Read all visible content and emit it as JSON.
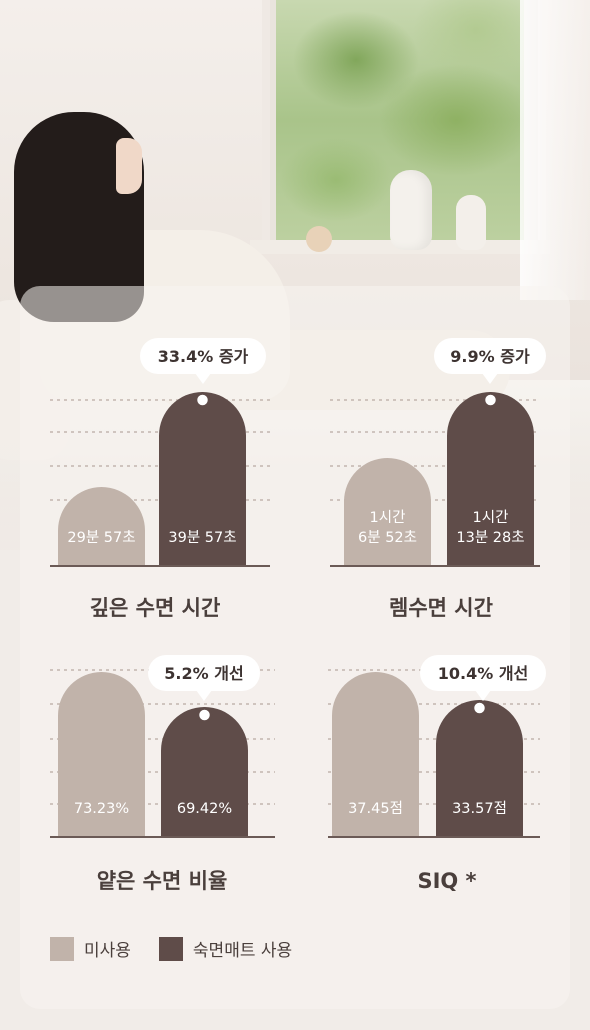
{
  "colors": {
    "before": "#c1b3aa",
    "after": "#5f4c49",
    "grid": "#b9aaa3",
    "axis": "#6b5a56",
    "bubble_bg": "#ffffff"
  },
  "legend": [
    {
      "label": "미사용",
      "color": "#c1b3aa"
    },
    {
      "label": "숙면매트 사용",
      "color": "#5f4c49"
    }
  ],
  "chart_data": [
    {
      "type": "bar",
      "title": "깊은 수면 시간",
      "categories": [
        "미사용",
        "숙면매트 사용"
      ],
      "values_minutes": [
        29.95,
        39.95
      ],
      "value_labels": [
        "29분 57초",
        "39분 57초"
      ],
      "annotation": "33.4% 증가"
    },
    {
      "type": "bar",
      "title": "렘수면 시간",
      "categories": [
        "미사용",
        "숙면매트 사용"
      ],
      "values_minutes": [
        66.87,
        73.47
      ],
      "value_labels": [
        "1시간\n6분 52초",
        "1시간\n13분 28초"
      ],
      "annotation": "9.9% 증가"
    },
    {
      "type": "bar",
      "title": "얕은 수면 비율",
      "categories": [
        "미사용",
        "숙면매트 사용"
      ],
      "values_percent": [
        73.23,
        69.42
      ],
      "value_labels": [
        "73.23%",
        "69.42%"
      ],
      "annotation": "5.2% 개선"
    },
    {
      "type": "bar",
      "title": "SIQ *",
      "categories": [
        "미사용",
        "숙면매트 사용"
      ],
      "values_points": [
        37.45,
        33.57
      ],
      "value_labels": [
        "37.45점",
        "33.57점"
      ],
      "annotation": "10.4% 개선"
    }
  ]
}
